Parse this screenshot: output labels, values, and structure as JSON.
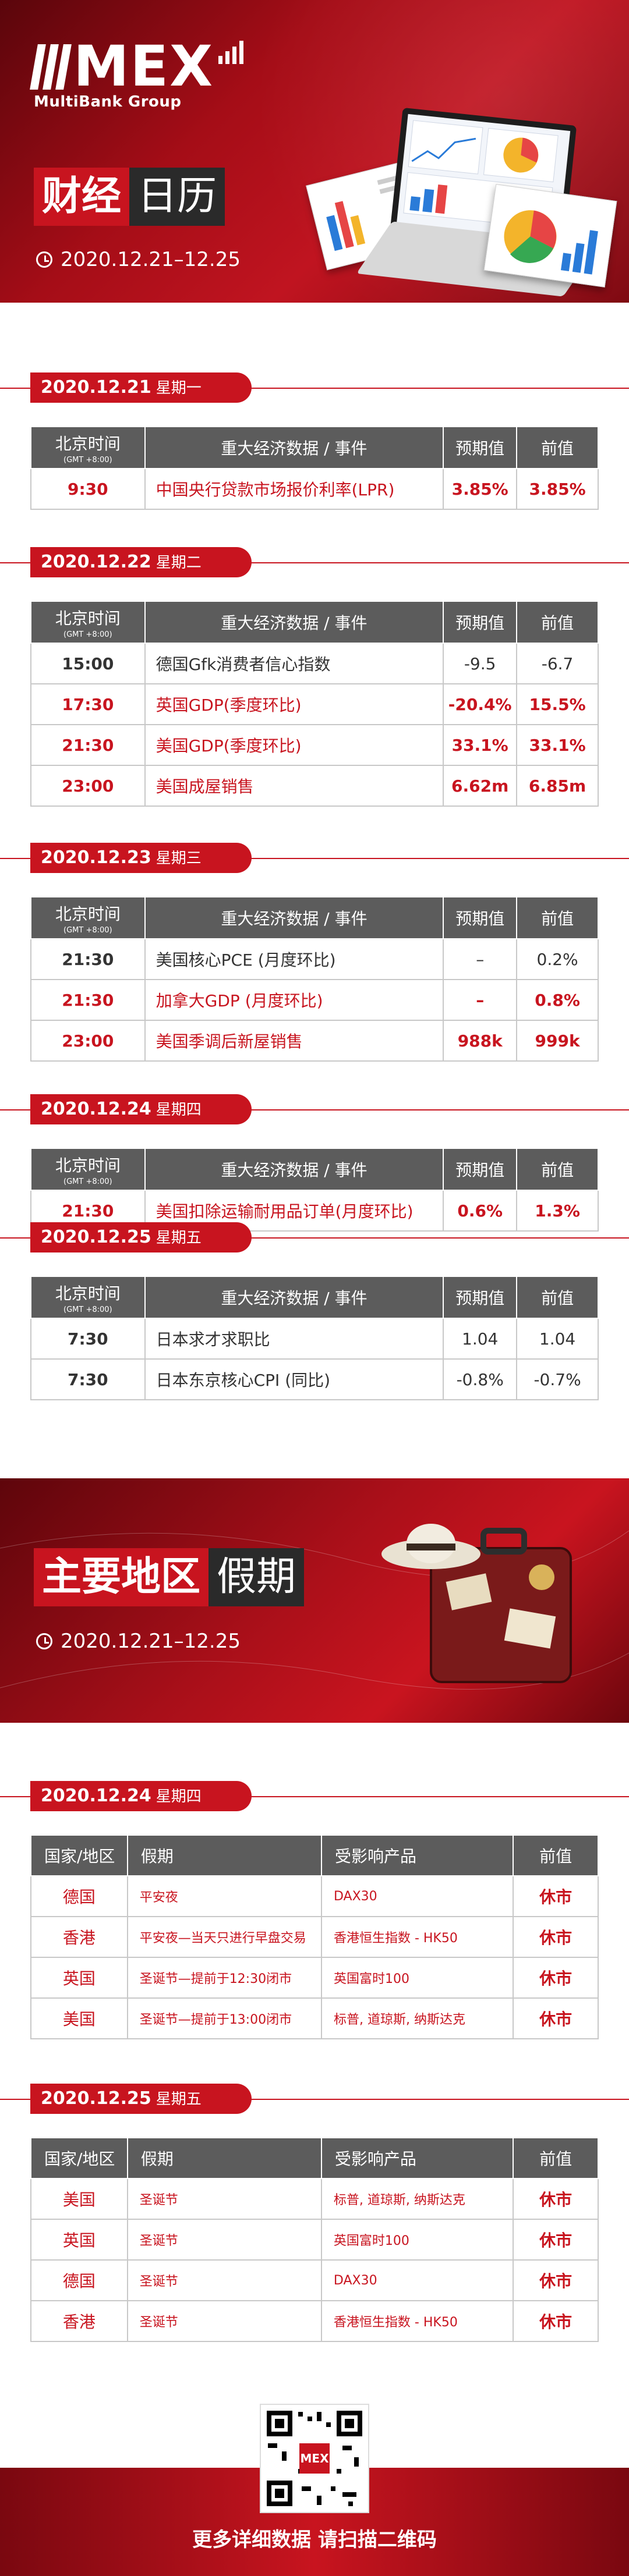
{
  "header": {
    "brand": "MEX",
    "brand_sub": "MultiBank Group",
    "title_red": "财经",
    "title_dark": "日历",
    "date_range": "2020.12.21–12.25"
  },
  "table_headers": {
    "time": "北京时间",
    "time_sub": "(GMT +8:00)",
    "event": "重大经济数据 / 事件",
    "forecast": "预期值",
    "previous": "前值"
  },
  "days": [
    {
      "date": "2020.12.21",
      "weekday": "星期一",
      "rows": [
        {
          "time": "9:30",
          "event": "中国央行贷款市场报价利率(LPR)",
          "forecast": "3.85%",
          "previous": "3.85%",
          "highlight": true
        }
      ]
    },
    {
      "date": "2020.12.22",
      "weekday": "星期二",
      "rows": [
        {
          "time": "15:00",
          "event": "德国Gfk消费者信心指数",
          "forecast": "-9.5",
          "previous": "-6.7",
          "highlight": false
        },
        {
          "time": "17:30",
          "event": "英国GDP(季度环比)",
          "forecast": "-20.4%",
          "previous": "15.5%",
          "highlight": true
        },
        {
          "time": "21:30",
          "event": "美国GDP(季度环比)",
          "forecast": "33.1%",
          "previous": "33.1%",
          "highlight": true
        },
        {
          "time": "23:00",
          "event": "美国成屋销售",
          "forecast": "6.62m",
          "previous": "6.85m",
          "highlight": true
        }
      ]
    },
    {
      "date": "2020.12.23",
      "weekday": "星期三",
      "rows": [
        {
          "time": "21:30",
          "event": "美国核心PCE (月度环比)",
          "forecast": "–",
          "previous": "0.2%",
          "highlight": false
        },
        {
          "time": "21:30",
          "event": "加拿大GDP (月度环比)",
          "forecast": "–",
          "previous": "0.8%",
          "highlight": true
        },
        {
          "time": "23:00",
          "event": "美国季调后新屋销售",
          "forecast": "988k",
          "previous": "999k",
          "highlight": true
        }
      ]
    },
    {
      "date": "2020.12.24",
      "weekday": "星期四",
      "rows": [
        {
          "time": "21:30",
          "event": "美国扣除运输耐用品订单(月度环比)",
          "forecast": "0.6%",
          "previous": "1.3%",
          "highlight": true
        }
      ]
    },
    {
      "date": "2020.12.25",
      "weekday": "星期五",
      "rows": [
        {
          "time": "7:30",
          "event": "日本求才求职比",
          "forecast": "1.04",
          "previous": "1.04",
          "highlight": false
        },
        {
          "time": "7:30",
          "event": "日本东京核心CPI (同比)",
          "forecast": "-0.8%",
          "previous": "-0.7%",
          "highlight": false
        }
      ]
    }
  ],
  "holiday_header": {
    "title_red": "主要地区",
    "title_dark": "假期",
    "date_range": "2020.12.21–12.25"
  },
  "holiday_table_headers": {
    "region": "国家/地区",
    "holiday": "假期",
    "products": "受影响产品",
    "previous": "前值"
  },
  "holiday_days": [
    {
      "date": "2020.12.24",
      "weekday": "星期四",
      "rows": [
        {
          "region": "德国",
          "holiday": "平安夜",
          "products": "DAX30",
          "status": "休市"
        },
        {
          "region": "香港",
          "holiday": "平安夜—当天只进行早盘交易",
          "products": "香港恒生指数 - HK50",
          "status": "休市"
        },
        {
          "region": "英国",
          "holiday": "圣诞节—提前于12:30闭市",
          "products": "英国富时100",
          "status": "休市"
        },
        {
          "region": "美国",
          "holiday": "圣诞节—提前于13:00闭市",
          "products": "标普, 道琼斯, 纳斯达克",
          "status": "休市"
        }
      ]
    },
    {
      "date": "2020.12.25",
      "weekday": "星期五",
      "rows": [
        {
          "region": "美国",
          "holiday": "圣诞节",
          "products": "标普, 道琼斯, 纳斯达克",
          "status": "休市"
        },
        {
          "region": "英国",
          "holiday": "圣诞节",
          "products": "英国富时100",
          "status": "休市"
        },
        {
          "region": "德国",
          "holiday": "圣诞节",
          "products": "DAX30",
          "status": "休市"
        },
        {
          "region": "香港",
          "holiday": "圣诞节",
          "products": "香港恒生指数 - HK50",
          "status": "休市"
        }
      ]
    }
  ],
  "footer": {
    "caption": "更多详细数据 请扫描二维码",
    "qr_logo": "MEX"
  },
  "colors": {
    "accent": "#c8141f",
    "header_gray": "#5c5c5c"
  }
}
